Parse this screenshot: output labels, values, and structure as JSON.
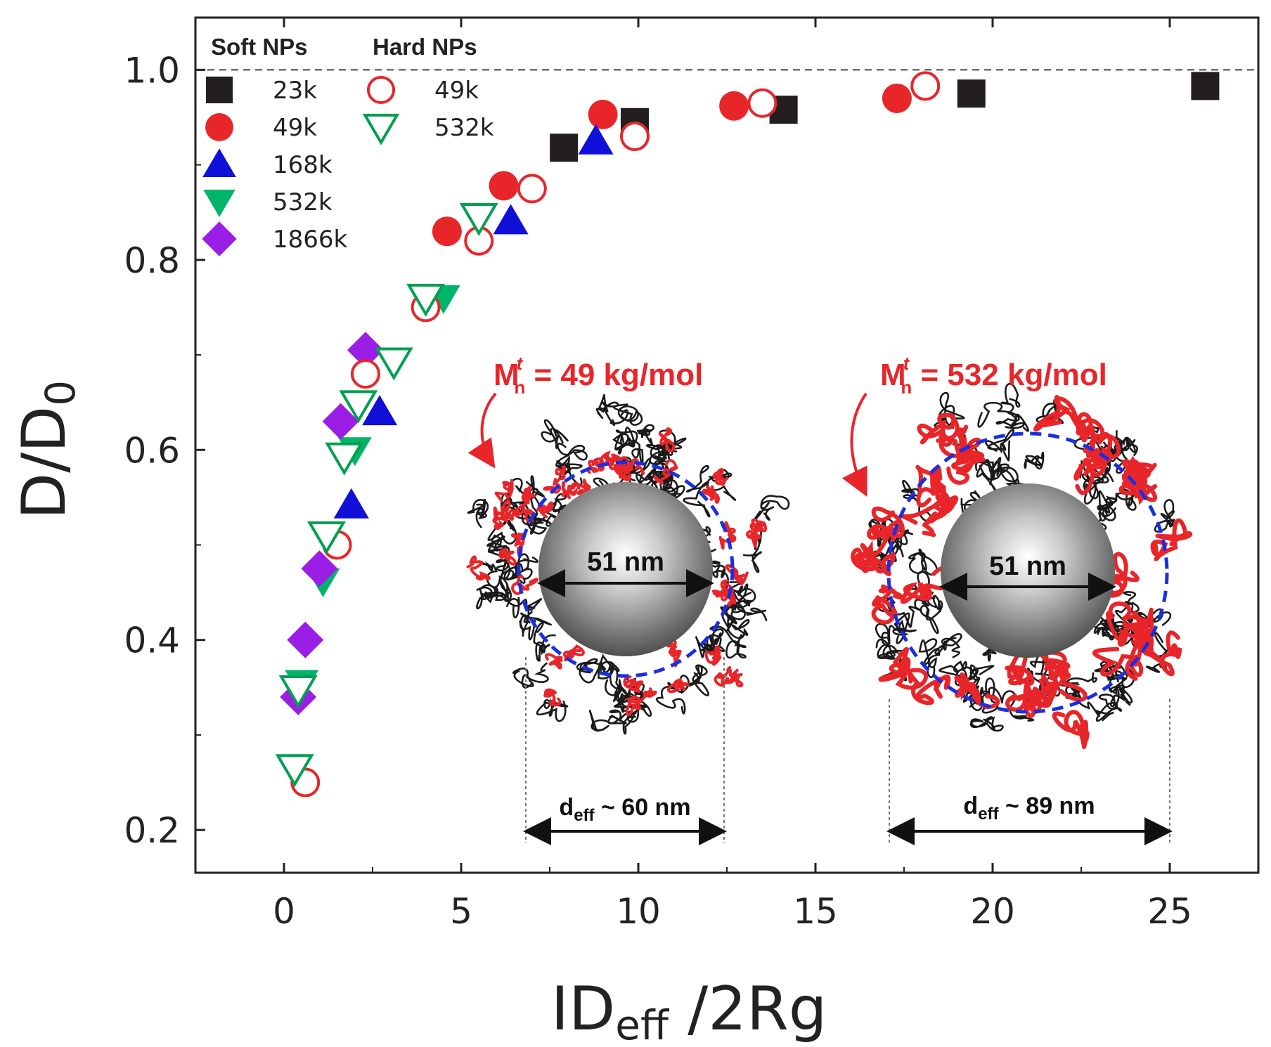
{
  "chart_data": {
    "type": "scatter",
    "title": "",
    "xlabel": "ID",
    "xlabel_sub": "eff",
    "xlabel_tail": " /2Rg",
    "ylabel": "D/D",
    "ylabel_sub": "0",
    "xlim": [
      -2.5,
      27.5
    ],
    "ylim": [
      0.155,
      1.055
    ],
    "xticks": [
      0,
      5,
      10,
      15,
      20,
      25
    ],
    "xtick_labels": [
      "0",
      "5",
      "10",
      "15",
      "20",
      "25"
    ],
    "yticks": [
      0.2,
      0.4,
      0.6,
      0.8,
      1.0
    ],
    "ytick_labels": [
      "0.2",
      "0.4",
      "0.6",
      "0.8",
      "1.0"
    ],
    "reference_line": {
      "y": 1.0,
      "style": "dashed"
    },
    "legend": {
      "placement": "top-left",
      "groups": [
        {
          "title": "Soft NPs",
          "entries": [
            "23k",
            "49k",
            "168k",
            "532k",
            "1866k"
          ]
        },
        {
          "title": "Hard NPs",
          "entries": [
            "49k",
            "532k"
          ]
        }
      ]
    },
    "series": [
      {
        "name": "23k",
        "group": "Soft NPs",
        "marker": "square",
        "filled": true,
        "color": "#231f20",
        "points": [
          [
            7.9,
            0.918
          ],
          [
            9.9,
            0.945
          ],
          [
            14.1,
            0.958
          ],
          [
            19.4,
            0.975
          ],
          [
            26.0,
            0.983
          ]
        ]
      },
      {
        "name": "49k",
        "group": "Soft NPs",
        "marker": "circle",
        "filled": true,
        "color": "#e8262a",
        "points": [
          [
            4.6,
            0.83
          ],
          [
            6.2,
            0.878
          ],
          [
            9.0,
            0.953
          ],
          [
            12.7,
            0.962
          ],
          [
            17.3,
            0.97
          ]
        ]
      },
      {
        "name": "168k",
        "group": "Soft NPs",
        "marker": "triangle-up",
        "filled": true,
        "color": "#1010d8",
        "points": [
          [
            1.9,
            0.542
          ],
          [
            2.7,
            0.64
          ],
          [
            6.4,
            0.841
          ],
          [
            8.8,
            0.925
          ]
        ]
      },
      {
        "name": "532k",
        "group": "Soft NPs",
        "marker": "triangle-down",
        "filled": true,
        "color": "#00b56a",
        "points": [
          [
            0.5,
            0.355
          ],
          [
            1.1,
            0.462
          ],
          [
            2.0,
            0.6
          ],
          [
            4.5,
            0.76
          ]
        ]
      },
      {
        "name": "1866k",
        "group": "Soft NPs",
        "marker": "diamond",
        "filled": true,
        "color": "#9b1ee6",
        "points": [
          [
            0.4,
            0.34
          ],
          [
            0.6,
            0.4
          ],
          [
            1.0,
            0.475
          ],
          [
            1.6,
            0.63
          ],
          [
            2.3,
            0.705
          ]
        ]
      },
      {
        "name": "49k",
        "group": "Hard NPs",
        "marker": "circle",
        "filled": false,
        "color": "#e8262a",
        "points": [
          [
            0.6,
            0.25
          ],
          [
            1.5,
            0.5
          ],
          [
            2.3,
            0.68
          ],
          [
            4.0,
            0.75
          ],
          [
            5.5,
            0.82
          ],
          [
            7.0,
            0.875
          ],
          [
            9.9,
            0.93
          ],
          [
            13.5,
            0.965
          ],
          [
            18.1,
            0.983
          ]
        ]
      },
      {
        "name": "532k",
        "group": "Hard NPs",
        "marker": "triangle-down",
        "filled": false,
        "color": "#00a050",
        "points": [
          [
            0.3,
            0.265
          ],
          [
            0.4,
            0.348
          ],
          [
            1.2,
            0.51
          ],
          [
            1.7,
            0.593
          ],
          [
            2.1,
            0.648
          ],
          [
            3.1,
            0.693
          ],
          [
            4.0,
            0.76
          ],
          [
            5.5,
            0.845
          ]
        ]
      }
    ],
    "annotations": {
      "inset_left": {
        "label": "M",
        "sub": "n",
        "sup": "t",
        "value": " = 49 kg/mol",
        "core": "51 nm",
        "deff_prefix": "d",
        "deff_sub": "eff",
        "deff_value": " ~ 60 nm"
      },
      "inset_right": {
        "label": "M",
        "sub": "n",
        "sup": "t",
        "value": " = 532 kg/mol",
        "core": "51 nm",
        "deff_prefix": "d",
        "deff_sub": "eff",
        "deff_value": " ~ 89 nm"
      }
    }
  },
  "colors": {
    "axis": "#222222",
    "shell_black": "#1a1a1a",
    "shell_red": "#e8262a",
    "ring_blue": "#1a2fe0"
  }
}
